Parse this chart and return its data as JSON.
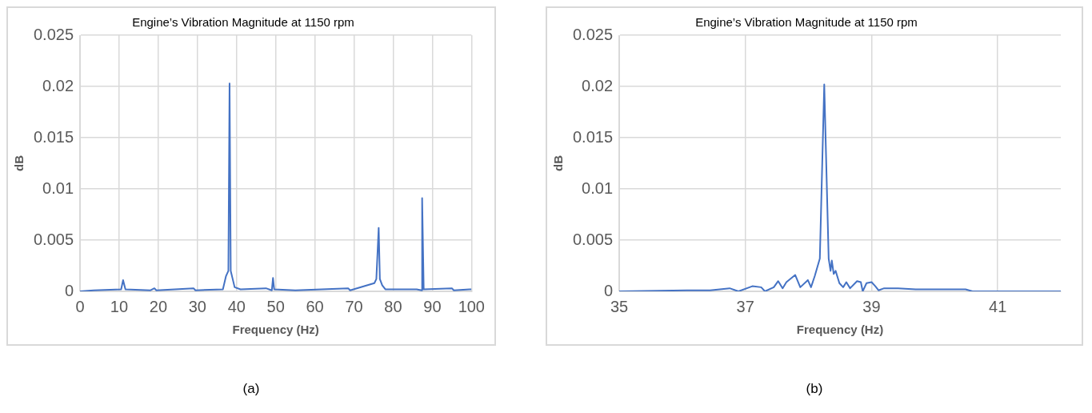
{
  "chart_data": [
    {
      "type": "line",
      "title": "Engine’s Vibration Magnitude at 1150 rpm",
      "xlabel": "Frequency (Hz)",
      "ylabel": "dB",
      "xlim": [
        0,
        100
      ],
      "xticks": [
        0,
        10,
        20,
        30,
        40,
        50,
        60,
        70,
        80,
        90,
        100
      ],
      "ylim": [
        0,
        0.025
      ],
      "yticks": [
        0,
        0.005,
        0.01,
        0.015,
        0.02,
        0.025
      ],
      "grid": true,
      "legend": false,
      "marker": "none",
      "line_style": "solid",
      "annotations": [
        "(a)"
      ],
      "series": [
        {
          "color": "#4472c4",
          "x": [
            0,
            3.5,
            10.5,
            11,
            11.6,
            18,
            19,
            19.5,
            29,
            29.5,
            36.5,
            37.3,
            37.9,
            38.2,
            38.5,
            39,
            39.5,
            41,
            47.5,
            49,
            49.3,
            49.6,
            55,
            68.5,
            69,
            75.2,
            75.7,
            76.3,
            76.6,
            77.2,
            78,
            86,
            87.3,
            87.4,
            87.8,
            95,
            95.5,
            99.5,
            100
          ],
          "values": [
            0,
            0.0001,
            0.0002,
            0.0011,
            0.0002,
            0.0001,
            0.0003,
            0.0001,
            0.0003,
            0.0001,
            0.0002,
            0.0015,
            0.002,
            0.0203,
            0.002,
            0.0012,
            0.0004,
            0.0002,
            0.0003,
            0.0001,
            0.0013,
            0.0002,
            0.0001,
            0.0003,
            0.0001,
            0.0008,
            0.0012,
            0.0062,
            0.0012,
            0.0006,
            0.0002,
            0.0002,
            0.0001,
            0.0091,
            0.0002,
            0.0003,
            0.0001,
            0.0002,
            0.0002
          ]
        }
      ]
    },
    {
      "type": "line",
      "title": "Engine’s Vibration Magnitude at 1150 rpm",
      "xlabel": "Frequency (Hz)",
      "ylabel": "dB",
      "xlim": [
        35,
        42
      ],
      "xticks": [
        35,
        37,
        39,
        41
      ],
      "ylim": [
        0,
        0.025
      ],
      "yticks": [
        0,
        0.005,
        0.01,
        0.015,
        0.02,
        0.025
      ],
      "grid": true,
      "legend": false,
      "marker": "none",
      "line_style": "solid",
      "annotations": [
        "(b)"
      ],
      "series": [
        {
          "color": "#4472c4",
          "x": [
            35,
            36.07,
            36.44,
            36.75,
            36.89,
            37.11,
            37.25,
            37.31,
            37.45,
            37.52,
            37.59,
            37.65,
            37.79,
            37.87,
            37.99,
            38.04,
            38.1,
            38.18,
            38.25,
            38.32,
            38.35,
            38.37,
            38.4,
            38.43,
            38.49,
            38.55,
            38.6,
            38.66,
            38.77,
            38.83,
            38.86,
            38.92,
            39,
            39.06,
            39.11,
            39.2,
            39.42,
            39.7,
            39.99,
            40.49,
            40.6,
            42
          ],
          "values": [
            0,
            0.0001,
            0.0001,
            0.0003,
            0,
            0.0005,
            0.0004,
            0,
            0.0004,
            0.001,
            0.0003,
            0.0009,
            0.0016,
            0.0004,
            0.0011,
            0.0004,
            0.0015,
            0.0032,
            0.0202,
            0.0032,
            0.002,
            0.003,
            0.0017,
            0.002,
            0.0008,
            0.0004,
            0.0009,
            0.0003,
            0.001,
            0.0009,
            0,
            0.0008,
            0.0009,
            0.0005,
            0.0001,
            0.0003,
            0.0003,
            0.0002,
            0.0002,
            0.0002,
            0,
            0
          ]
        }
      ]
    }
  ]
}
